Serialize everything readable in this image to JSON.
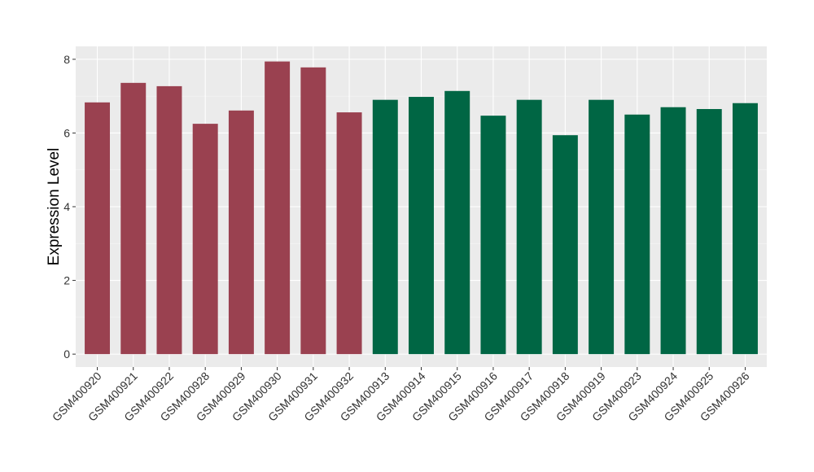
{
  "chart_data": {
    "type": "bar",
    "title": "",
    "xlabel": "",
    "ylabel": "Expression Level",
    "ylim": [
      -0.35,
      8.35
    ],
    "yticks": [
      0,
      2,
      4,
      6,
      8
    ],
    "grid": true,
    "categories": [
      "GSM400920",
      "GSM400921",
      "GSM400922",
      "GSM400928",
      "GSM400929",
      "GSM400930",
      "GSM400931",
      "GSM400932",
      "GSM400913",
      "GSM400914",
      "GSM400915",
      "GSM400916",
      "GSM400917",
      "GSM400918",
      "GSM400919",
      "GSM400923",
      "GSM400924",
      "GSM400925",
      "GSM400926"
    ],
    "values": [
      6.83,
      7.36,
      7.27,
      6.25,
      6.61,
      7.94,
      7.78,
      6.56,
      6.9,
      6.98,
      7.14,
      6.47,
      6.9,
      5.94,
      6.9,
      6.5,
      6.7,
      6.65,
      6.81
    ],
    "groups": [
      0,
      0,
      0,
      0,
      0,
      0,
      0,
      0,
      1,
      1,
      1,
      1,
      1,
      1,
      1,
      1,
      1,
      1,
      1
    ],
    "group_colors": [
      "#9a4150",
      "#006644"
    ]
  }
}
